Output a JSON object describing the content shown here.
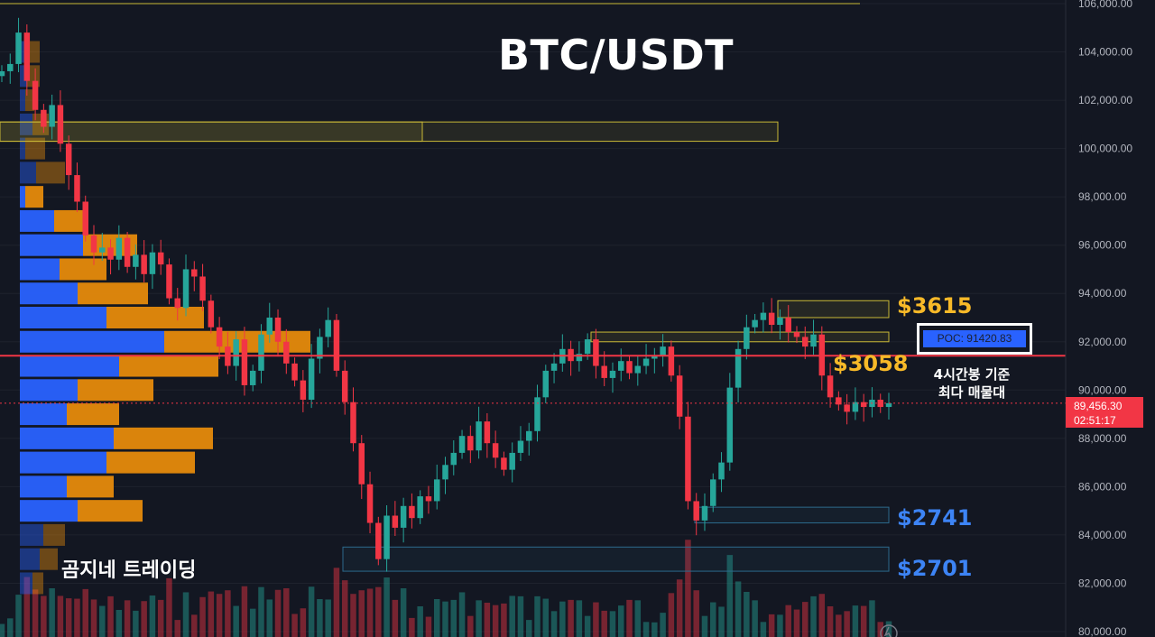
{
  "title": "BTC/USDT",
  "watermark": "곰지네 트레이딩",
  "levels": {
    "l3615": "$3615",
    "l3058": "$3058",
    "l2741": "$2741",
    "l2701": "$2701"
  },
  "poc": {
    "label": "POC: 91420.83"
  },
  "note": {
    "line1": "4시간봉 기준",
    "line2": "최다 매물대"
  },
  "current_price": {
    "price": "89,456.30",
    "countdown": "02:51:17"
  },
  "colors": {
    "up": "#26a69a",
    "down": "#f23645",
    "poc_line": "#f23645",
    "profile_blue": "#2962ff",
    "profile_orange": "#e58a0c",
    "supply": "#c9b836",
    "demand": "#2c6a8c",
    "text_gold": "#f7b928",
    "text_blue": "#3d84f5"
  },
  "chart_data": {
    "type": "candlestick",
    "title": "BTC/USDT",
    "y_ticks": [
      "106,000.00",
      "104,000.00",
      "102,000.00",
      "100,000.00",
      "98,000.00",
      "96,000.00",
      "94,000.00",
      "92,000.00",
      "90,000.00",
      "88,000.00",
      "86,000.00",
      "84,000.00",
      "82,000.00",
      "80,000.00"
    ],
    "ylim": [
      79900,
      106200
    ],
    "poc_price": 91420.83,
    "last_price": 89456.3,
    "zones": [
      {
        "label": "$3615",
        "from": 93000,
        "to": 93700,
        "kind": "supply"
      },
      {
        "label": "$3058",
        "from": 92000,
        "to": 92400,
        "kind": "supply"
      },
      {
        "label": "$2741",
        "from": 84500,
        "to": 85150,
        "kind": "demand"
      },
      {
        "label": "$2701",
        "from": 82500,
        "to": 83500,
        "kind": "demand"
      },
      {
        "label": "",
        "from": 100300,
        "to": 101100,
        "kind": "supply"
      }
    ],
    "closes": [
      103200,
      103500,
      104800,
      102800,
      101600,
      100900,
      101800,
      100200,
      98900,
      97800,
      96400,
      95700,
      95900,
      95400,
      96300,
      95100,
      95600,
      94800,
      95700,
      95200,
      93800,
      93400,
      95000,
      94700,
      93700,
      92600,
      91800,
      91000,
      92100,
      90200,
      90800,
      92300,
      93000,
      92000,
      91100,
      90400,
      89600,
      91300,
      92200,
      92900,
      90800,
      89500,
      87800,
      86100,
      84500,
      83000,
      84800,
      84300,
      85200,
      84700,
      85600,
      85400,
      86300,
      86900,
      87400,
      88100,
      87500,
      88700,
      87800,
      87200,
      86700,
      87400,
      87900,
      88300,
      89700,
      90800,
      91100,
      91700,
      91200,
      91500,
      92100,
      91000,
      90500,
      90800,
      91200,
      90700,
      91000,
      91300,
      91400,
      91800,
      90600,
      88900,
      85400,
      84600,
      85200,
      86300,
      87000,
      90100,
      91700,
      92600,
      92900,
      93200,
      92700,
      93000,
      92400,
      92200,
      91800,
      92300,
      90600,
      89700,
      89400,
      89100,
      89500,
      89300,
      89600,
      89300,
      89456
    ]
  },
  "profile": {
    "rows": [
      {
        "price": 104000,
        "blue": 10,
        "orange": 12
      },
      {
        "price": 103000,
        "blue": 8,
        "orange": 14
      },
      {
        "price": 102000,
        "blue": 6,
        "orange": 10
      },
      {
        "price": 101000,
        "blue": 14,
        "orange": 18
      },
      {
        "price": 100000,
        "blue": 6,
        "orange": 22
      },
      {
        "price": 99000,
        "blue": 18,
        "orange": 32
      },
      {
        "price": 98000,
        "blue": 6,
        "orange": 20
      },
      {
        "price": 97000,
        "blue": 38,
        "orange": 32
      },
      {
        "price": 96000,
        "blue": 70,
        "orange": 60
      },
      {
        "price": 95000,
        "blue": 44,
        "orange": 52
      },
      {
        "price": 94000,
        "blue": 64,
        "orange": 78
      },
      {
        "price": 93000,
        "blue": 96,
        "orange": 108
      },
      {
        "price": 92000,
        "blue": 160,
        "orange": 162
      },
      {
        "price": 91000,
        "blue": 110,
        "orange": 110
      },
      {
        "price": 90000,
        "blue": 64,
        "orange": 84
      },
      {
        "price": 89000,
        "blue": 52,
        "orange": 58
      },
      {
        "price": 88000,
        "blue": 104,
        "orange": 110
      },
      {
        "price": 87000,
        "blue": 96,
        "orange": 98
      },
      {
        "price": 86000,
        "blue": 52,
        "orange": 52
      },
      {
        "price": 85000,
        "blue": 64,
        "orange": 72
      },
      {
        "price": 84000,
        "blue": 26,
        "orange": 24
      },
      {
        "price": 83000,
        "blue": 22,
        "orange": 20
      },
      {
        "price": 82000,
        "blue": 14,
        "orange": 12
      }
    ]
  }
}
